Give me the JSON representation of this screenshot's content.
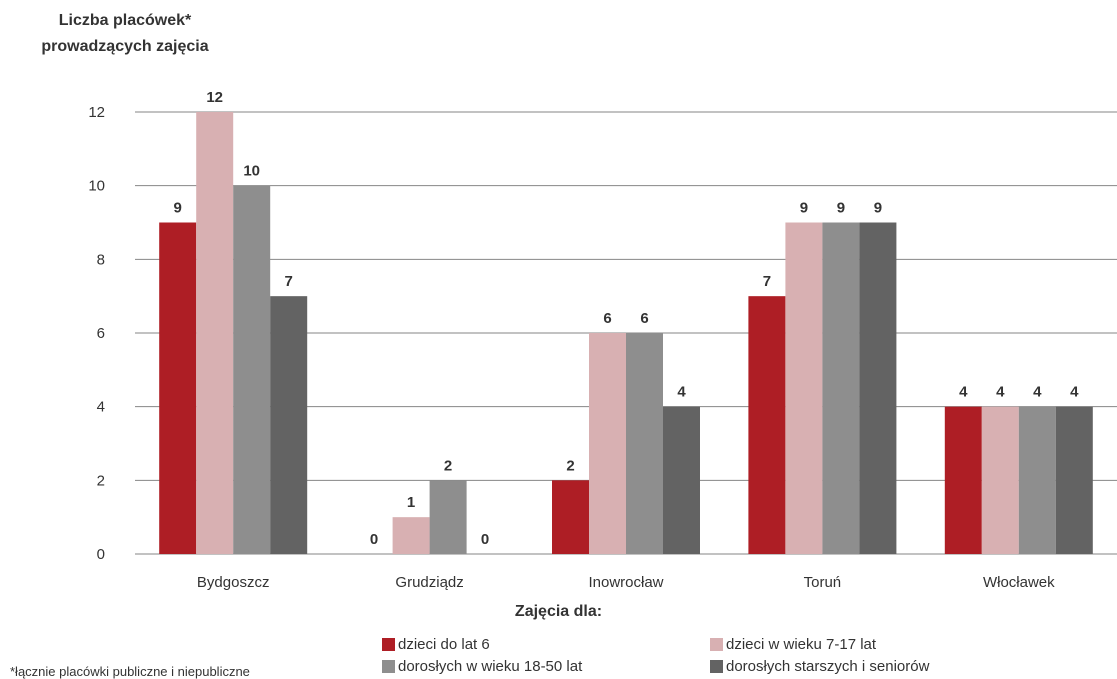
{
  "chart_data": {
    "type": "bar",
    "title": "",
    "ylabel_line1": "Liczba placówek*",
    "ylabel_line2": "prowadzących zajęcia",
    "xlabel": "Zajęcia dla:",
    "footnote": "*łącznie placówki publiczne i niepubliczne",
    "categories": [
      "Bydgoszcz",
      "Grudziądz",
      "Inowrocław",
      "Toruń",
      "Włocławek"
    ],
    "series": [
      {
        "name": "dzieci do lat 6",
        "color": "#AE1E25",
        "values": [
          9,
          0,
          2,
          7,
          4
        ]
      },
      {
        "name": "dzieci w wieku 7-17 lat",
        "color": "#D8B0B2",
        "values": [
          12,
          1,
          6,
          9,
          4
        ]
      },
      {
        "name": "dorosłych w wieku 18-50 lat",
        "color": "#8E8E8E",
        "values": [
          10,
          2,
          6,
          9,
          4
        ]
      },
      {
        "name": "dorosłych starszych i seniorów",
        "color": "#636363",
        "values": [
          7,
          0,
          4,
          9,
          4
        ]
      }
    ],
    "ylim": [
      0,
      12
    ],
    "yticks": [
      0,
      2,
      4,
      6,
      8,
      10,
      12
    ],
    "grid": true,
    "legend_position": "bottom"
  }
}
